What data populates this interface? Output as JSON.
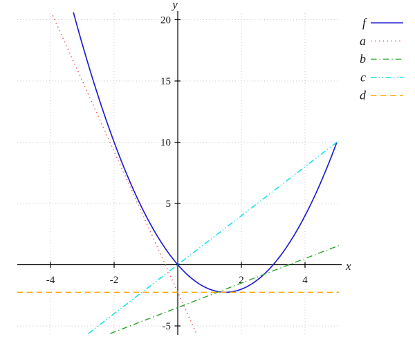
{
  "page": {
    "background": "#ffffff"
  },
  "chart_data": {
    "type": "line",
    "title": "",
    "xlabel": "x",
    "ylabel": "y",
    "grid": true,
    "grid_style": "dotted",
    "grid_color": "#c4c4c4",
    "axis_color": "#000000",
    "xlim": [
      -5.05,
      5.07
    ],
    "ylim": [
      -5.62,
      20.55
    ],
    "x_ticks": [
      -4,
      -2,
      2,
      4
    ],
    "x_tick_labels": [
      "-4",
      "-2",
      "2",
      "4"
    ],
    "y_ticks": [
      -5,
      5,
      10,
      15,
      20
    ],
    "y_tick_labels": [
      "-5",
      "5",
      "10",
      "15",
      "20"
    ],
    "legend_position": "top-right-outside",
    "series": [
      {
        "name": "f",
        "kind": "parabola",
        "equation": "y = x^2 - 3x",
        "coeffs": [
          1,
          -3,
          0
        ],
        "domain": [
          -3.28,
          5.0
        ],
        "color": "#2020cf",
        "dash": "solid",
        "width": 1.7,
        "key_points": {
          "roots": [
            0,
            3
          ],
          "vertex": [
            1.5,
            -2.25
          ],
          "right_end": [
            5,
            10
          ]
        }
      },
      {
        "name": "a",
        "kind": "line",
        "equation": "y = -5.75x - 2.25",
        "slope": -5.75,
        "intercept": -2.25,
        "domain": [
          -3.93,
          0.59
        ],
        "color": "#f05454",
        "dash": "dotted",
        "width": 1.6
      },
      {
        "name": "b",
        "kind": "line",
        "equation": "y = x - 3.5",
        "slope": 1,
        "intercept": -3.5,
        "domain": [
          -2.12,
          5.06
        ],
        "color": "#2aa42a",
        "dash": "dashdot",
        "width": 1.4
      },
      {
        "name": "c",
        "kind": "line",
        "equation": "y = 2x",
        "slope": 2,
        "intercept": 0,
        "domain": [
          -2.81,
          5.07
        ],
        "color": "#17e2ec",
        "dash": "dashdotdot",
        "width": 1.6
      },
      {
        "name": "d",
        "kind": "line",
        "equation": "y = -2.25",
        "slope": 0,
        "intercept": -2.25,
        "domain": [
          -5.05,
          5.07
        ],
        "color": "#ffa500",
        "dash": "dashed",
        "width": 1.4
      }
    ],
    "legend": {
      "entries": [
        {
          "label": "f",
          "color": "#2020cf",
          "dash": "solid"
        },
        {
          "label": "a",
          "color": "#f05454",
          "dash": "dotted"
        },
        {
          "label": "b",
          "color": "#2aa42a",
          "dash": "dashdot"
        },
        {
          "label": "c",
          "color": "#17e2ec",
          "dash": "dashdotdot"
        },
        {
          "label": "d",
          "color": "#ffa500",
          "dash": "dashed"
        }
      ]
    }
  }
}
